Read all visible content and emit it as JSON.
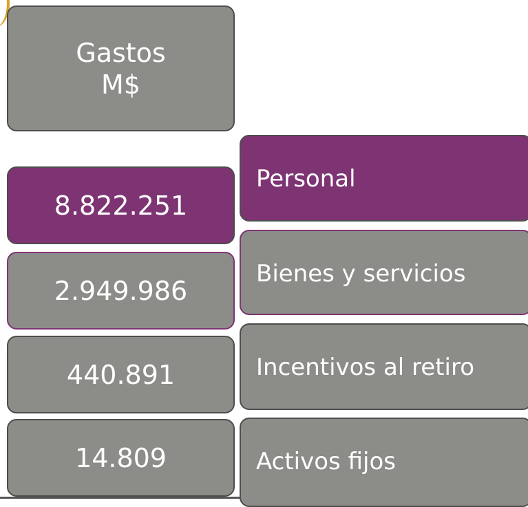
{
  "header": {
    "lines": [
      "Gastos",
      "M$"
    ]
  },
  "rows": [
    {
      "value": "8.822.251",
      "label": "Personal"
    },
    {
      "value": "2.949.986",
      "label": "Bienes y servicios"
    },
    {
      "value": "440.891",
      "label": "Incentivos al retiro"
    },
    {
      "value": "14.809",
      "label": "Activos fijos"
    }
  ]
}
